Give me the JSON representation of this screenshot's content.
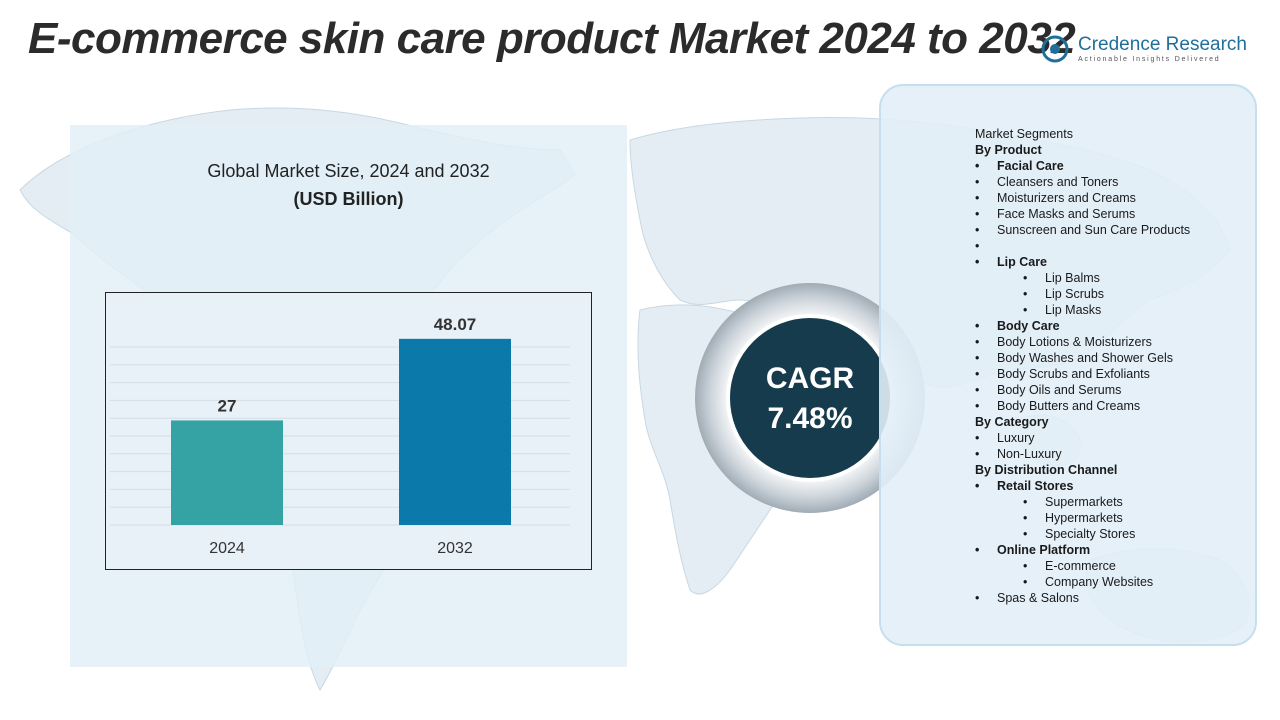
{
  "title": "E-commerce skin care product Market 2024 to 2032",
  "logo": {
    "name": "Credence Research",
    "tagline": "Actionable Insights Delivered"
  },
  "chart_data": {
    "type": "bar",
    "title": "Global Market Size, 2024 and 2032",
    "unit_label": "(USD Billion)",
    "categories": [
      "2024",
      "2032"
    ],
    "values": [
      27,
      48.07
    ],
    "value_labels": [
      "27",
      "48.07"
    ],
    "ylim": [
      0,
      55
    ],
    "grid": true,
    "bar_colors": [
      "#35a3a3",
      "#0b7aaa"
    ]
  },
  "cagr": {
    "label": "CAGR",
    "value": "7.48%"
  },
  "segments": [
    {
      "text": "Market Segments",
      "bullet": "",
      "indent": 0,
      "bold": false
    },
    {
      "text": "By Product",
      "bullet": "",
      "indent": 0,
      "bold": true
    },
    {
      "text": "Facial Care",
      "bullet": "•",
      "indent": 1,
      "bold": true
    },
    {
      "text": "Cleansers and Toners",
      "bullet": "•",
      "indent": 1,
      "bold": false
    },
    {
      "text": "Moisturizers and Creams",
      "bullet": "•",
      "indent": 1,
      "bold": false
    },
    {
      "text": "Face  Masks and Serums",
      "bullet": "•",
      "indent": 1,
      "bold": false
    },
    {
      "text": "Sunscreen  and Sun Care Products",
      "bullet": "•",
      "indent": 1,
      "bold": false
    },
    {
      "text": "",
      "bullet": "•",
      "indent": 1,
      "bold": false
    },
    {
      "text": "Lip Care",
      "bullet": "•",
      "indent": 1,
      "bold": true
    },
    {
      "text": "Lip Balms",
      "bullet": "•",
      "indent": 2,
      "bold": false
    },
    {
      "text": "Lip Scrubs",
      "bullet": "•",
      "indent": 2,
      "bold": false
    },
    {
      "text": "Lip Masks",
      "bullet": "•",
      "indent": 2,
      "bold": false
    },
    {
      "text": "Body Care",
      "bullet": "•",
      "indent": 1,
      "bold": true
    },
    {
      "text": "Body Lotions & Moisturizers",
      "bullet": "•",
      "indent": 1,
      "bold": false
    },
    {
      "text": "Body Washes and Shower Gels",
      "bullet": "•",
      "indent": 1,
      "bold": false
    },
    {
      "text": "Body Scrubs and Exfoliants",
      "bullet": "•",
      "indent": 1,
      "bold": false
    },
    {
      "text": "Body Oils and Serums",
      "bullet": "•",
      "indent": 1,
      "bold": false
    },
    {
      "text": "Body Butters and Creams",
      "bullet": "•",
      "indent": 1,
      "bold": false
    },
    {
      "text": "By Category",
      "bullet": "",
      "indent": 0,
      "bold": true
    },
    {
      "text": "Luxury",
      "bullet": "•",
      "indent": 1,
      "bold": false
    },
    {
      "text": "Non-Luxury",
      "bullet": "•",
      "indent": 1,
      "bold": false
    },
    {
      "text": "By Distribution Channel",
      "bullet": "",
      "indent": 0,
      "bold": true
    },
    {
      "text": "Retail Stores",
      "bullet": "•",
      "indent": 1,
      "bold": true
    },
    {
      "text": "Supermarkets",
      "bullet": "•",
      "indent": 2,
      "bold": false
    },
    {
      "text": "Hypermarkets",
      "bullet": "•",
      "indent": 2,
      "bold": false
    },
    {
      "text": "Specialty Stores",
      "bullet": "•",
      "indent": 2,
      "bold": false
    },
    {
      "text": "Online Platform",
      "bullet": "•",
      "indent": 1,
      "bold": true
    },
    {
      "text": "E-commerce",
      "bullet": "•",
      "indent": 2,
      "bold": false
    },
    {
      "text": "Company Websites",
      "bullet": "•",
      "indent": 2,
      "bold": false
    },
    {
      "text": "Spas & Salons",
      "bullet": "•",
      "indent": 1,
      "bold": false
    }
  ]
}
